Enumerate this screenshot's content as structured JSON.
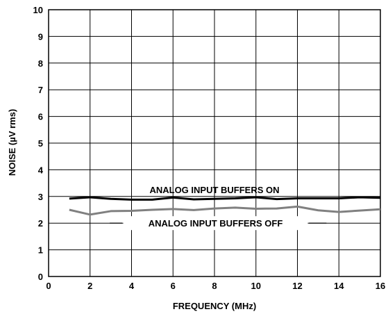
{
  "chart_data": {
    "type": "line",
    "title": "",
    "xlabel": "FREQUENCY (MHz)",
    "ylabel": "NOISE (µV rms)",
    "xlim": [
      0,
      16
    ],
    "ylim": [
      0,
      10
    ],
    "xticks": [
      0,
      2,
      4,
      6,
      8,
      10,
      12,
      14,
      16
    ],
    "yticks": [
      0,
      1,
      2,
      3,
      4,
      5,
      6,
      7,
      8,
      9,
      10
    ],
    "grid": true,
    "legend": "none",
    "series": [
      {
        "name": "ANALOG INPUT BUFFERS ON",
        "color": "#000000",
        "x": [
          1,
          2,
          3,
          4,
          5,
          6,
          7,
          8,
          9,
          10,
          11,
          12,
          13,
          14,
          15,
          16
        ],
        "y": [
          2.92,
          2.97,
          2.91,
          2.88,
          2.88,
          2.96,
          2.89,
          2.91,
          2.93,
          2.97,
          2.9,
          2.93,
          2.93,
          2.93,
          2.97,
          2.95
        ]
      },
      {
        "name": "ANALOG INPUT BUFFERS OFF",
        "color": "#808080",
        "x": [
          1,
          2,
          3,
          4,
          5,
          6,
          7,
          8,
          9,
          10,
          11,
          12,
          13,
          14,
          15,
          16
        ],
        "y": [
          2.5,
          2.32,
          2.45,
          2.46,
          2.5,
          2.53,
          2.49,
          2.55,
          2.58,
          2.54,
          2.55,
          2.62,
          2.48,
          2.42,
          2.47,
          2.52
        ]
      }
    ]
  }
}
